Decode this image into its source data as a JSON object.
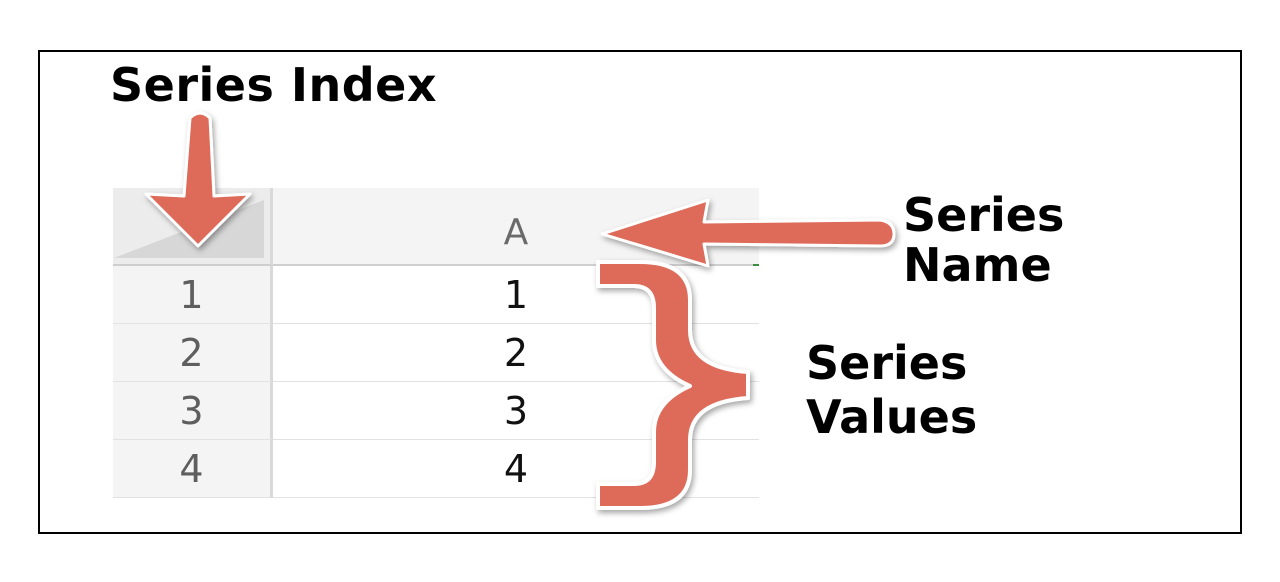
{
  "labels": {
    "series_index": "Series Index",
    "series_name_line1": "Series",
    "series_name_line2": "Name",
    "series_values_line1": "Series",
    "series_values_line2": "Values"
  },
  "sheet": {
    "column_header": "A",
    "rows": [
      {
        "index": "1",
        "value": "1"
      },
      {
        "index": "2",
        "value": "2"
      },
      {
        "index": "3",
        "value": "3"
      },
      {
        "index": "4",
        "value": "4"
      }
    ]
  },
  "colors": {
    "annotation": "#de6b5a",
    "text": "#000000",
    "header_bg": "#f4f4f4"
  },
  "icons": {
    "down_arrow": "down-arrow-icon",
    "left_arrow": "left-arrow-icon",
    "brace": "right-curly-brace-icon"
  }
}
